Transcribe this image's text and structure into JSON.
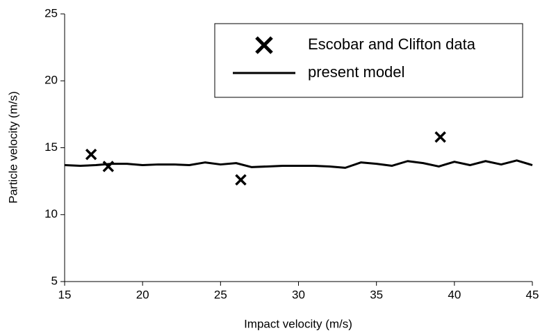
{
  "chart_data": {
    "type": "line",
    "xlabel": "Impact velocity (m/s)",
    "ylabel": "Particle velocity (m/s)",
    "xlim": [
      15,
      45
    ],
    "xticks": [
      15,
      20,
      25,
      30,
      35,
      40,
      45
    ],
    "ylim": [
      5,
      25
    ],
    "yticks": [
      5,
      10,
      15,
      20,
      25
    ],
    "grid": false,
    "legend": "upper right",
    "series": [
      {
        "name": "Escobar and Clifton data",
        "color": "#000000",
        "type": "scatter",
        "x": [
          16.7,
          17.8,
          26.3,
          39.1
        ],
        "values": [
          14.5,
          13.6,
          12.6,
          15.8
        ]
      },
      {
        "name": "present model",
        "color": "#000000",
        "type": "line",
        "x": [
          15,
          16,
          17,
          18,
          19,
          20,
          21,
          22,
          23,
          24,
          25,
          26,
          27,
          28,
          29,
          30,
          31,
          32,
          33,
          34,
          35,
          36,
          37,
          38,
          39,
          40,
          41,
          42,
          43,
          44,
          45
        ],
        "values": [
          13.7,
          13.65,
          13.7,
          13.8,
          13.8,
          13.7,
          13.75,
          13.75,
          13.7,
          13.9,
          13.75,
          13.85,
          13.55,
          13.6,
          13.65,
          13.65,
          13.65,
          13.6,
          13.5,
          13.9,
          13.8,
          13.65,
          14.0,
          13.85,
          13.6,
          13.95,
          13.7,
          14.0,
          13.75,
          14.05,
          13.7
        ]
      }
    ]
  }
}
